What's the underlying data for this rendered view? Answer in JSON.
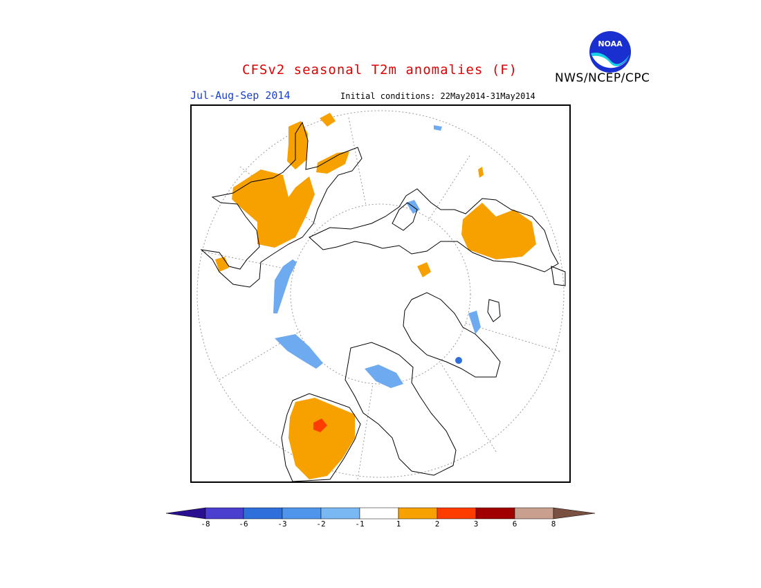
{
  "header": {
    "title": "CFSv2 seasonal T2m anomalies (F)",
    "period": "Jul-Aug-Sep 2014",
    "initial_conditions": "Initial conditions: 22May2014-31May2014",
    "agency": "NWS/NCEP/CPC",
    "logo_text": "NOAA"
  },
  "colors": {
    "title": "#e00000",
    "period": "#1a3fd0",
    "warm1": "#f7a100",
    "warm2": "#ff3c00",
    "cool1": "#6eaaf0",
    "cool2": "#3c82e6"
  },
  "colorbar": {
    "labels": [
      "-8",
      "-6",
      "-3",
      "-2",
      "-1",
      "1",
      "2",
      "3",
      "6",
      "8"
    ],
    "colors": [
      "#2a1090",
      "#4b3fd0",
      "#2f6fdc",
      "#4f95ec",
      "#7ab8f4",
      "#ffffff",
      "#f7a100",
      "#ff3c00",
      "#a00000",
      "#c9a090",
      "#7a5040"
    ]
  }
}
